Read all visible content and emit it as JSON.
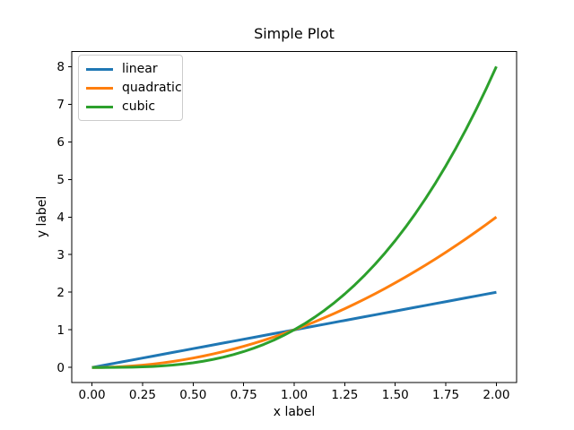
{
  "chart_data": {
    "type": "line",
    "title": "Simple Plot",
    "xlabel": "x label",
    "ylabel": "y label",
    "xlim": [
      -0.1,
      2.1
    ],
    "ylim": [
      -0.4,
      8.4
    ],
    "grid": false,
    "background": "#ffffff",
    "spine_color": "#000000",
    "tick_color": "#000000",
    "line_width": 3,
    "xticks": {
      "values": [
        0,
        0.25,
        0.5,
        0.75,
        1,
        1.25,
        1.5,
        1.75,
        2
      ],
      "labels": [
        "0.00",
        "0.25",
        "0.50",
        "0.75",
        "1.00",
        "1.25",
        "1.50",
        "1.75",
        "2.00"
      ]
    },
    "yticks": {
      "values": [
        0,
        1,
        2,
        3,
        4,
        5,
        6,
        7,
        8
      ],
      "labels": [
        "0",
        "1",
        "2",
        "3",
        "4",
        "5",
        "6",
        "7",
        "8"
      ]
    },
    "legend": {
      "position": "upper left",
      "border_color": "#cccccc",
      "background": "#ffffff"
    },
    "x": [
      0,
      0.05,
      0.1,
      0.15,
      0.2,
      0.25,
      0.3,
      0.35,
      0.4,
      0.45,
      0.5,
      0.55,
      0.6,
      0.65,
      0.7,
      0.75,
      0.8,
      0.85,
      0.9,
      0.95,
      1,
      1.05,
      1.1,
      1.15,
      1.2,
      1.25,
      1.3,
      1.35,
      1.4,
      1.45,
      1.5,
      1.55,
      1.6,
      1.65,
      1.7,
      1.75,
      1.8,
      1.85,
      1.9,
      1.95,
      2
    ],
    "series": [
      {
        "name": "linear",
        "color": "#1f77b4",
        "values": [
          0,
          0.05,
          0.1,
          0.15,
          0.2,
          0.25,
          0.3,
          0.35,
          0.4,
          0.45,
          0.5,
          0.55,
          0.6,
          0.65,
          0.7,
          0.75,
          0.8,
          0.85,
          0.9,
          0.95,
          1,
          1.05,
          1.1,
          1.15,
          1.2,
          1.25,
          1.3,
          1.35,
          1.4,
          1.45,
          1.5,
          1.55,
          1.6,
          1.65,
          1.7,
          1.75,
          1.8,
          1.85,
          1.9,
          1.95,
          2
        ]
      },
      {
        "name": "quadratic",
        "color": "#ff7f0e",
        "values": [
          0,
          0.0025,
          0.01,
          0.0225,
          0.04,
          0.0625,
          0.09,
          0.1225,
          0.16,
          0.2025,
          0.25,
          0.3025,
          0.36,
          0.4225,
          0.49,
          0.5625,
          0.64,
          0.7225,
          0.81,
          0.9025,
          1,
          1.1025,
          1.21,
          1.3225,
          1.44,
          1.5625,
          1.69,
          1.8225,
          1.96,
          2.1025,
          2.25,
          2.4025,
          2.56,
          2.7225,
          2.89,
          3.0625,
          3.24,
          3.4225,
          3.61,
          3.8025,
          4
        ]
      },
      {
        "name": "cubic",
        "color": "#2ca02c",
        "values": [
          0,
          0.000125,
          0.001,
          0.003375,
          0.008,
          0.015625,
          0.027,
          0.042875,
          0.064,
          0.091125,
          0.125,
          0.166375,
          0.216,
          0.274625,
          0.343,
          0.421875,
          0.512,
          0.614125,
          0.729,
          0.857375,
          1,
          1.157625,
          1.331,
          1.520875,
          1.728,
          1.953125,
          2.197,
          2.460375,
          2.744,
          3.048625,
          3.375,
          3.723875,
          4.096,
          4.492125,
          4.913,
          5.359375,
          5.832,
          6.331625,
          6.859,
          7.414875,
          8
        ]
      }
    ]
  }
}
